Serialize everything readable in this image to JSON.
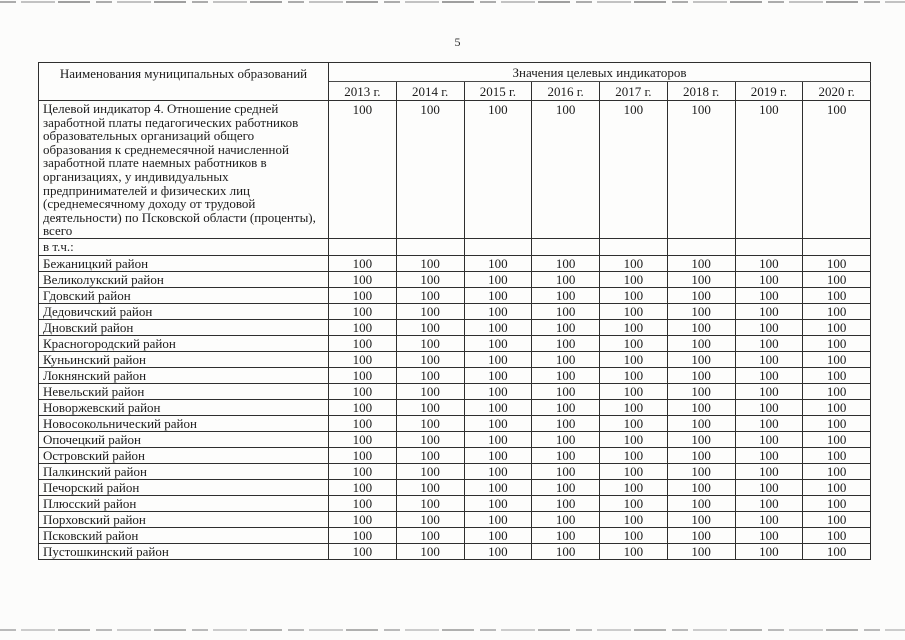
{
  "page": {
    "number": "5"
  },
  "table": {
    "col1_header": "Наименования муниципальных образований",
    "group_header": "Значения целевых индикаторов",
    "year_headers": [
      "2013 г.",
      "2014 г.",
      "2015 г.",
      "2016 г.",
      "2017 г.",
      "2018 г.",
      "2019 г.",
      "2020 г."
    ],
    "indicator_row": {
      "label": "Целевой индикатор 4. Отношение средней заработной платы педагогических работников образовательных организаций общего образования к среднемесячной начисленной заработной плате наемных работников в организациях, у индивидуальных предпринимателей и физических лиц (среднемесячному доходу от трудовой деятельности) по Псковской области (проценты), всего",
      "values": [
        "100",
        "100",
        "100",
        "100",
        "100",
        "100",
        "100",
        "100"
      ]
    },
    "including_row": {
      "label": "в т.ч.:",
      "values": [
        "",
        "",
        "",
        "",
        "",
        "",
        "",
        ""
      ]
    },
    "district_rows": [
      {
        "label": "Бежаницкий район",
        "values": [
          "100",
          "100",
          "100",
          "100",
          "100",
          "100",
          "100",
          "100"
        ]
      },
      {
        "label": "Великолукский район",
        "values": [
          "100",
          "100",
          "100",
          "100",
          "100",
          "100",
          "100",
          "100"
        ]
      },
      {
        "label": "Гдовский район",
        "values": [
          "100",
          "100",
          "100",
          "100",
          "100",
          "100",
          "100",
          "100"
        ]
      },
      {
        "label": "Дедовичский район",
        "values": [
          "100",
          "100",
          "100",
          "100",
          "100",
          "100",
          "100",
          "100"
        ]
      },
      {
        "label": "Дновский район",
        "values": [
          "100",
          "100",
          "100",
          "100",
          "100",
          "100",
          "100",
          "100"
        ]
      },
      {
        "label": "Красногородский район",
        "values": [
          "100",
          "100",
          "100",
          "100",
          "100",
          "100",
          "100",
          "100"
        ]
      },
      {
        "label": "Куньинский район",
        "values": [
          "100",
          "100",
          "100",
          "100",
          "100",
          "100",
          "100",
          "100"
        ]
      },
      {
        "label": "Локнянский район",
        "values": [
          "100",
          "100",
          "100",
          "100",
          "100",
          "100",
          "100",
          "100"
        ]
      },
      {
        "label": "Невельский район",
        "values": [
          "100",
          "100",
          "100",
          "100",
          "100",
          "100",
          "100",
          "100"
        ]
      },
      {
        "label": "Новоржевский район",
        "values": [
          "100",
          "100",
          "100",
          "100",
          "100",
          "100",
          "100",
          "100"
        ]
      },
      {
        "label": "Новосокольнический район",
        "values": [
          "100",
          "100",
          "100",
          "100",
          "100",
          "100",
          "100",
          "100"
        ]
      },
      {
        "label": "Опочецкий район",
        "values": [
          "100",
          "100",
          "100",
          "100",
          "100",
          "100",
          "100",
          "100"
        ]
      },
      {
        "label": "Островский район",
        "values": [
          "100",
          "100",
          "100",
          "100",
          "100",
          "100",
          "100",
          "100"
        ]
      },
      {
        "label": "Палкинский район",
        "values": [
          "100",
          "100",
          "100",
          "100",
          "100",
          "100",
          "100",
          "100"
        ]
      },
      {
        "label": "Печорский район",
        "values": [
          "100",
          "100",
          "100",
          "100",
          "100",
          "100",
          "100",
          "100"
        ]
      },
      {
        "label": "Плюсский район",
        "values": [
          "100",
          "100",
          "100",
          "100",
          "100",
          "100",
          "100",
          "100"
        ]
      },
      {
        "label": "Порховский район",
        "values": [
          "100",
          "100",
          "100",
          "100",
          "100",
          "100",
          "100",
          "100"
        ]
      },
      {
        "label": "Псковский район",
        "values": [
          "100",
          "100",
          "100",
          "100",
          "100",
          "100",
          "100",
          "100"
        ]
      },
      {
        "label": "Пустошкинский район",
        "values": [
          "100",
          "100",
          "100",
          "100",
          "100",
          "100",
          "100",
          "100"
        ]
      }
    ]
  },
  "colors": {
    "page_background": "#fcfcfb",
    "table_border": "#2f2f2f",
    "text": "#1c1c1c",
    "scan_artifact": "#9e9e9e"
  }
}
